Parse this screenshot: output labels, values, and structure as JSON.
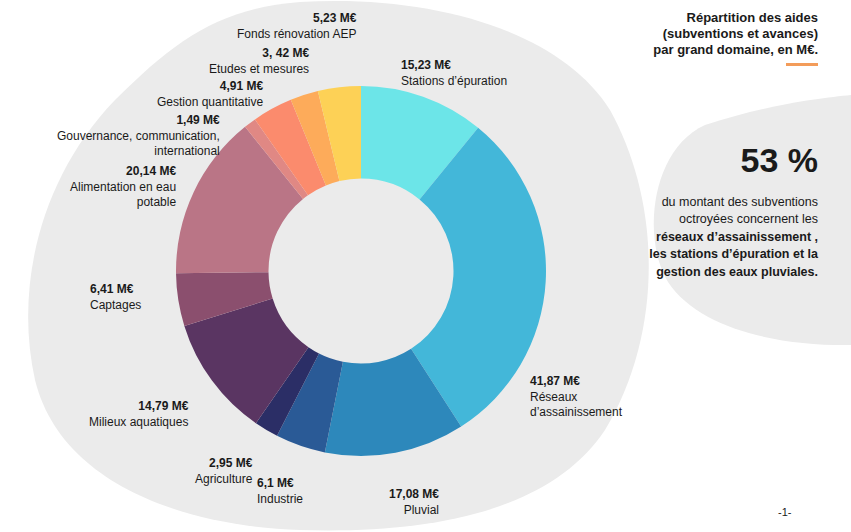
{
  "chart_data": {
    "type": "donut",
    "title": "Répartition des aides (subventions et avances) par grand domaine, en M€.",
    "categories": [
      "Stations d’épuration",
      "Réseaux d’assainissement",
      "Pluvial",
      "Industrie",
      "Agriculture",
      "Milieux aquatiques",
      "Captages",
      "Alimentation en eau potable",
      "Gouvernance, communication, international",
      "Gestion quantitative",
      "Etudes et mesures",
      "Fonds rénovation AEP"
    ],
    "values": [
      15.23,
      41.87,
      17.08,
      6.1,
      2.95,
      14.79,
      6.41,
      20.14,
      1.49,
      4.91,
      3.42,
      5.23
    ],
    "value_labels": [
      "15,23 M€",
      "41,87 M€",
      "17,08 M€",
      "6,1 M€",
      "2,95 M€",
      "14,79 M€",
      "6,41 M€",
      "20,14 M€",
      "1,49 M€",
      "4,91 M€",
      "3, 42 M€",
      "5,23 M€"
    ],
    "colors": [
      "#6ce5e8",
      "#43b7d9",
      "#2d88bb",
      "#2a5a96",
      "#2b2e66",
      "#5a3562",
      "#8b4f6e",
      "#ba7586",
      "#e08884",
      "#fb8b6d",
      "#fdab5a",
      "#fdd156"
    ],
    "data_labels": true
  },
  "callout": {
    "headline": "53 %",
    "text": "du montant des subventions octroyées concernent les ",
    "bold_text": "réseaux d’assainissement , les stations d’épuration et la gestion des eaux pluviales."
  },
  "page_number": "-1-"
}
